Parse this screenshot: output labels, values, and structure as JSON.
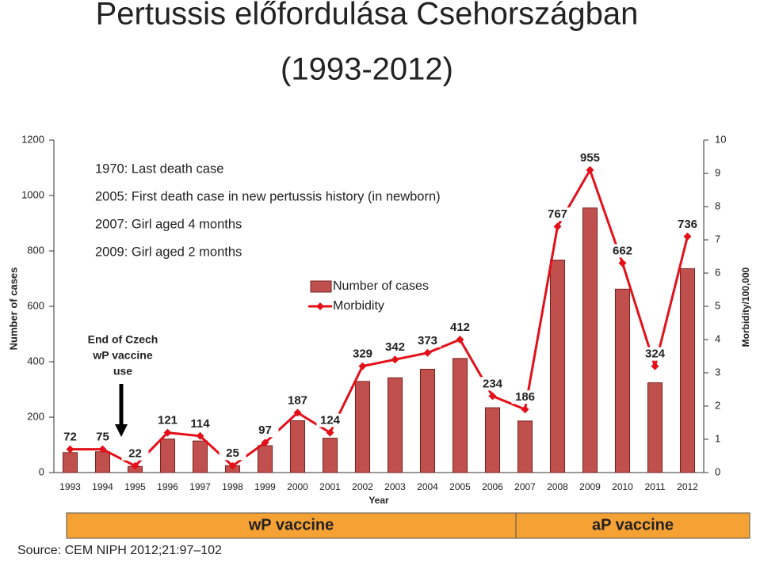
{
  "chart_data": {
    "type": "bar",
    "title": "Pertussis előfordulása Csehországban",
    "subtitle": "(1993-2012)",
    "categories": [
      "1993",
      "1994",
      "1995",
      "1996",
      "1997",
      "1998",
      "1999",
      "2000",
      "2001",
      "2002",
      "2003",
      "2004",
      "2005",
      "2006",
      "2007",
      "2008",
      "2009",
      "2010",
      "2011",
      "2012"
    ],
    "series": [
      {
        "name": "Number of cases",
        "type": "bar",
        "color": "#c0504d",
        "values": [
          72,
          75,
          22,
          121,
          114,
          25,
          97,
          187,
          124,
          329,
          342,
          373,
          412,
          234,
          186,
          767,
          955,
          662,
          324,
          736
        ]
      },
      {
        "name": "Morbidity",
        "type": "line",
        "axis": "y2",
        "color": "#e3101a",
        "values": [
          0.7,
          0.7,
          0.2,
          1.2,
          1.1,
          0.2,
          0.9,
          1.8,
          1.2,
          3.2,
          3.4,
          3.6,
          4.0,
          2.3,
          1.9,
          7.4,
          9.1,
          6.3,
          3.2,
          7.1
        ]
      }
    ],
    "ylim": [
      0,
      1200
    ],
    "yticks": [
      0,
      200,
      400,
      600,
      800,
      1000,
      1200
    ],
    "y2lim": [
      0,
      10
    ],
    "y2ticks": [
      0,
      1,
      2,
      3,
      4,
      5,
      6,
      7,
      8,
      9,
      10
    ],
    "xlabel": "Year",
    "ylabel": "Number of cases",
    "y2label": "Morbidity/100,000",
    "annotations": [
      "1970: Last death case",
      "2005: First death case in new pertussis history (in newborn)",
      "2007: Girl aged 4 months",
      "2009: Girl aged 2 months"
    ],
    "arrow_note": [
      "End of Czech",
      "wP vaccine",
      "use"
    ],
    "vaccine_periods": [
      "wP vaccine",
      "aP vaccine"
    ],
    "source": "Source: CEM NIPH 2012;21:97–102"
  }
}
